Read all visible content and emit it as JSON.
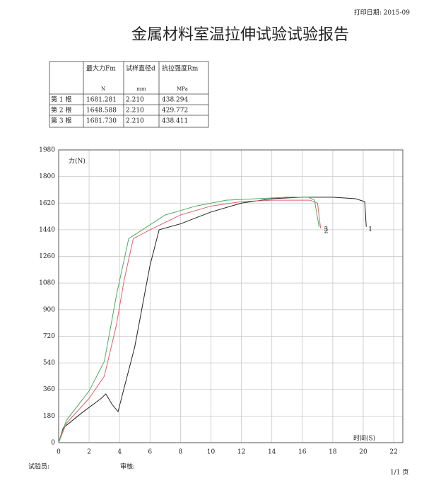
{
  "header": {
    "print_date": "打印日期: 2015-09",
    "title": "金属材料室温拉伸试验试验报告"
  },
  "table": {
    "columns": [
      "最大力Fm",
      "试样直径d",
      "抗拉强度Rm"
    ],
    "units": [
      "N",
      "mm",
      "MPa"
    ],
    "rows": [
      [
        "第 1 根",
        "1681.281",
        "2.210",
        "438.294"
      ],
      [
        "第 2 根",
        "1648.588",
        "2.210",
        "429.772"
      ],
      [
        "第 3 根",
        "1681.730",
        "2.210",
        "438.411"
      ]
    ]
  },
  "chart_data": {
    "type": "line",
    "y_label": "力(N)",
    "x_label": "时间(S)",
    "xlim": [
      0,
      22.6
    ],
    "xticks": [
      0,
      2,
      4,
      6,
      8,
      10,
      12,
      14,
      16,
      18,
      20,
      22
    ],
    "ylim": [
      0,
      1980
    ],
    "yticks": [
      0,
      180,
      360,
      540,
      720,
      900,
      1080,
      1260,
      1440,
      1620,
      1800,
      1980
    ],
    "grid": true,
    "series": [
      {
        "name": "1",
        "color": "#222222",
        "x": [
          0,
          0.3,
          1.5,
          2.8,
          3.1,
          3.5,
          3.9,
          5,
          6,
          6.6,
          8,
          10,
          12,
          14,
          16,
          18,
          19.5,
          20.1,
          20.2
        ],
        "values": [
          0,
          100,
          200,
          300,
          330,
          260,
          210,
          650,
          1200,
          1440,
          1480,
          1560,
          1620,
          1650,
          1660,
          1660,
          1650,
          1630,
          1460
        ]
      },
      {
        "name": "2",
        "color": "#e06070",
        "x": [
          0,
          0.5,
          2,
          3,
          3.8,
          4.3,
          4.9,
          6,
          8,
          10,
          12,
          14,
          16.5,
          17,
          17.2
        ],
        "values": [
          0,
          130,
          300,
          450,
          800,
          1100,
          1380,
          1440,
          1540,
          1600,
          1630,
          1640,
          1640,
          1620,
          1450
        ]
      },
      {
        "name": "3",
        "color": "#4caa5c",
        "x": [
          0,
          0.5,
          2,
          3,
          3.8,
          4.6,
          5.5,
          7,
          9,
          11,
          13,
          15,
          16.4,
          16.8,
          17.1
        ],
        "values": [
          0,
          150,
          350,
          550,
          1000,
          1380,
          1440,
          1540,
          1600,
          1640,
          1650,
          1660,
          1660,
          1640,
          1460
        ]
      }
    ]
  },
  "footer": {
    "tester": "试验员:",
    "reviewer": "审核:",
    "page": "1/1 页"
  }
}
